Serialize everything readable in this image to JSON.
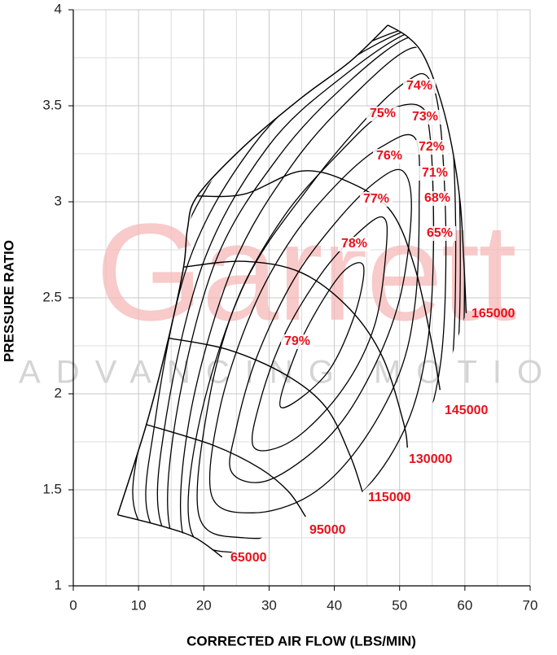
{
  "chart_data": {
    "type": "compressor-map",
    "xlabel": "CORRECTED AIR FLOW (LBS/MIN)",
    "ylabel": "PRESSURE RATIO",
    "watermark": {
      "brand": "Garrett",
      "tagline": "ADVANCING MOTION"
    },
    "xlim": [
      0,
      70
    ],
    "ylim": [
      1,
      4
    ],
    "xticks": [
      0,
      10,
      20,
      30,
      40,
      50,
      60,
      70
    ],
    "yticks": [
      1,
      1.5,
      2,
      2.5,
      3,
      3.5,
      4
    ],
    "x_minor_ticks": [
      5,
      15,
      25,
      35,
      45,
      55,
      65
    ],
    "y_minor_ticks": [
      1.25,
      1.75,
      2.25,
      2.75,
      3.25,
      3.75
    ],
    "grid": true,
    "line_color": "#000000",
    "label_color": "#e8101a",
    "surge_line": {
      "x": [
        6.8,
        11.2,
        14.6,
        16.9,
        17.5,
        19.0,
        26.2,
        34.9,
        42.4,
        48.2
      ],
      "y": [
        1.37,
        1.84,
        2.29,
        2.66,
        2.86,
        3.03,
        3.29,
        3.54,
        3.73,
        3.92
      ]
    },
    "speed_lines": [
      {
        "rpm": 65000,
        "x": [
          6.8,
          13.7,
          18.7,
          22.8
        ],
        "y": [
          1.37,
          1.31,
          1.25,
          1.15
        ]
      },
      {
        "rpm": 95000,
        "x": [
          11.2,
          21.6,
          28.7,
          33,
          35.6
        ],
        "y": [
          1.84,
          1.73,
          1.61,
          1.49,
          1.36
        ]
      },
      {
        "rpm": 115000,
        "x": [
          14.6,
          23.7,
          32.5,
          38.7,
          42.4,
          44.3
        ],
        "y": [
          2.29,
          2.23,
          2.1,
          1.93,
          1.68,
          1.49
        ]
      },
      {
        "rpm": 130000,
        "x": [
          16.9,
          26.2,
          35,
          42.4,
          47.4,
          50.6,
          51.2
        ],
        "y": [
          2.66,
          2.69,
          2.63,
          2.44,
          2.19,
          1.85,
          1.72
        ]
      },
      {
        "rpm": 145000,
        "x": [
          19.0,
          26.2,
          35,
          42.4,
          48.7,
          52.4,
          54.9,
          56.2
        ],
        "y": [
          3.03,
          3.04,
          3.16,
          3.1,
          2.95,
          2.65,
          2.27,
          2.02
        ]
      },
      {
        "rpm": 165000,
        "x": [
          48.2,
          51.2,
          53.7,
          56.2,
          58,
          59.3,
          59.9,
          60.2
        ],
        "y": [
          3.92,
          3.86,
          3.76,
          3.54,
          3.29,
          2.99,
          2.65,
          2.42
        ]
      }
    ],
    "efficiency_islands": [
      {
        "value": 79,
        "label": "79%",
        "x": [
          31.8,
          38.7,
          43.0,
          44.5,
          41.8,
          38.1,
          34.3
        ],
        "y": [
          1.93,
          2.1,
          2.4,
          2.66,
          2.65,
          2.48,
          2.23
        ]
      },
      {
        "value": 78,
        "label": "78%",
        "x": [
          27.7,
          33.7,
          41.2,
          46.2,
          48.0,
          47.4,
          43.7,
          38.1,
          32.4,
          28.7
        ],
        "y": [
          1.72,
          1.76,
          2.02,
          2.36,
          2.78,
          2.92,
          2.84,
          2.63,
          2.31,
          1.97
        ]
      },
      {
        "value": 77,
        "label": "77%",
        "x": [
          24.3,
          29.9,
          38.7,
          44.9,
          49.9,
          51.8,
          50.5,
          46.2,
          39.9,
          33.7,
          28.1,
          24.9
        ],
        "y": [
          1.59,
          1.55,
          1.76,
          2.06,
          2.48,
          2.95,
          3.16,
          3.1,
          2.88,
          2.59,
          2.19,
          1.81
        ]
      },
      {
        "value": 76,
        "label": "76%",
        "x": [
          21.2,
          27.5,
          36.2,
          43.7,
          49.9,
          52.4,
          53.0,
          52.4,
          47.4,
          41.2,
          33.7,
          27.5,
          22.5
        ],
        "y": [
          1.47,
          1.38,
          1.47,
          1.72,
          2.1,
          2.48,
          2.99,
          3.33,
          3.29,
          3.12,
          2.82,
          2.44,
          1.93
        ]
      },
      {
        "value": 75,
        "label": "75%",
        "x": [
          19.3,
          26.2,
          36.2,
          44.9,
          51.2,
          54.3,
          55.2,
          54.7,
          53.0,
          47.4,
          41.2,
          32.4,
          25.0,
          20.6
        ],
        "y": [
          1.36,
          1.25,
          1.3,
          1.51,
          1.85,
          2.27,
          2.78,
          3.33,
          3.5,
          3.46,
          3.27,
          2.93,
          2.48,
          1.93
        ]
      },
      {
        "value": 74,
        "label": "74%",
        "x": [
          18.1,
          26.2,
          37.4,
          46.2,
          52.4,
          56.2,
          57.1,
          56.2,
          54.3,
          51.2,
          45.6,
          36.2,
          26.2,
          19.3
        ],
        "y": [
          1.28,
          1.17,
          1.21,
          1.38,
          1.68,
          2.14,
          2.78,
          3.42,
          3.65,
          3.63,
          3.46,
          3.08,
          2.57,
          1.85
        ]
      },
      {
        "value": 73,
        "label": "73%",
        "x": [
          17.2,
          26.2,
          38.7,
          47.4,
          54.3,
          57.8,
          58.6,
          57.8,
          55.5,
          51.8,
          43.7,
          33.7,
          24.3,
          17.7
        ],
        "y": [
          1.22,
          1.11,
          1.15,
          1.3,
          1.55,
          2.06,
          2.78,
          3.46,
          3.71,
          3.8,
          3.58,
          3.2,
          2.65,
          1.85
        ]
      },
      {
        "value": 72,
        "label": "72%",
        "x": [
          15.2,
          23.7,
          38.7,
          48.7,
          55.5,
          58.6,
          59.3,
          58.4,
          56.2,
          51.8,
          42.4,
          31.8,
          21.8,
          15.6
        ],
        "y": [
          1.25,
          1.08,
          1.08,
          1.23,
          1.51,
          2.06,
          2.78,
          3.5,
          3.75,
          3.86,
          3.63,
          3.25,
          2.69,
          1.85
        ]
      },
      {
        "value": 71,
        "label": "71%",
        "x": [
          13.7,
          23.1,
          38.7,
          49.3,
          56.4,
          59.4,
          59.9,
          58.9,
          56.8,
          52.2,
          41.2,
          29.9,
          20.0,
          14.1
        ],
        "y": [
          1.3,
          1.08,
          1.05,
          1.19,
          1.47,
          2.06,
          2.78,
          3.52,
          3.79,
          3.89,
          3.65,
          3.29,
          2.69,
          1.85
        ]
      },
      {
        "value": 68,
        "label": "68%",
        "x": [
          11.9,
          22.5,
          38.7,
          49.9,
          57.1,
          60.0,
          60.5,
          59.5,
          57.4,
          52.7,
          39.3,
          27.5,
          17.7,
          12.5
        ],
        "y": [
          1.32,
          1.06,
          1.03,
          1.15,
          1.43,
          2.06,
          2.78,
          3.54,
          3.81,
          3.91,
          3.67,
          3.29,
          2.69,
          1.85
        ]
      },
      {
        "value": 65,
        "label": "65%",
        "x": [
          10.0,
          22.2,
          38.7,
          50.5,
          57.8,
          60.6,
          61.1,
          60.1,
          57.9,
          53.0,
          37.4,
          25.0,
          15.2,
          10.6
        ],
        "y": [
          1.34,
          1.03,
          1.02,
          1.12,
          1.4,
          2.06,
          2.78,
          3.56,
          3.82,
          3.92,
          3.69,
          3.3,
          2.69,
          1.85
        ]
      }
    ]
  }
}
